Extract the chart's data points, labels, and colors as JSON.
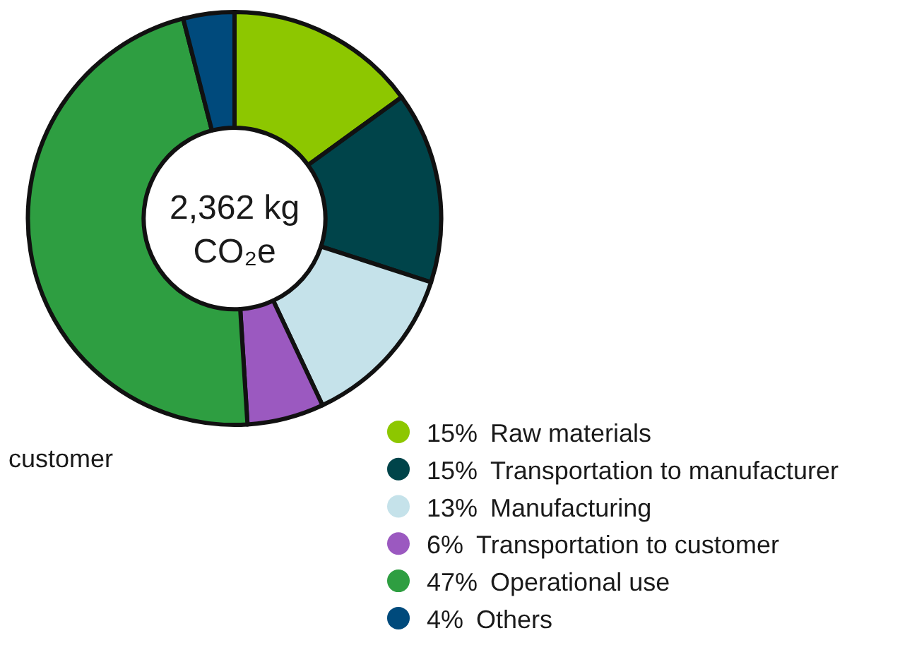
{
  "chart_data": {
    "type": "donut",
    "categories": [
      "Raw materials",
      "Transportation to manufacturer",
      "Manufacturing",
      "Transportation to customer",
      "Operational use",
      "Others"
    ],
    "values": [
      15,
      15,
      13,
      6,
      47,
      4
    ],
    "value_labels": [
      "15%",
      "15%",
      "13%",
      "6%",
      "47%",
      "4%"
    ],
    "colors": [
      "#8dc700",
      "#00444a",
      "#c5e2ea",
      "#9b59c0",
      "#2e9e41",
      "#004a7c"
    ],
    "legend": "bottom right",
    "annotations": [
      "2,362 kg\nCO₂e",
      "customer"
    ]
  }
}
